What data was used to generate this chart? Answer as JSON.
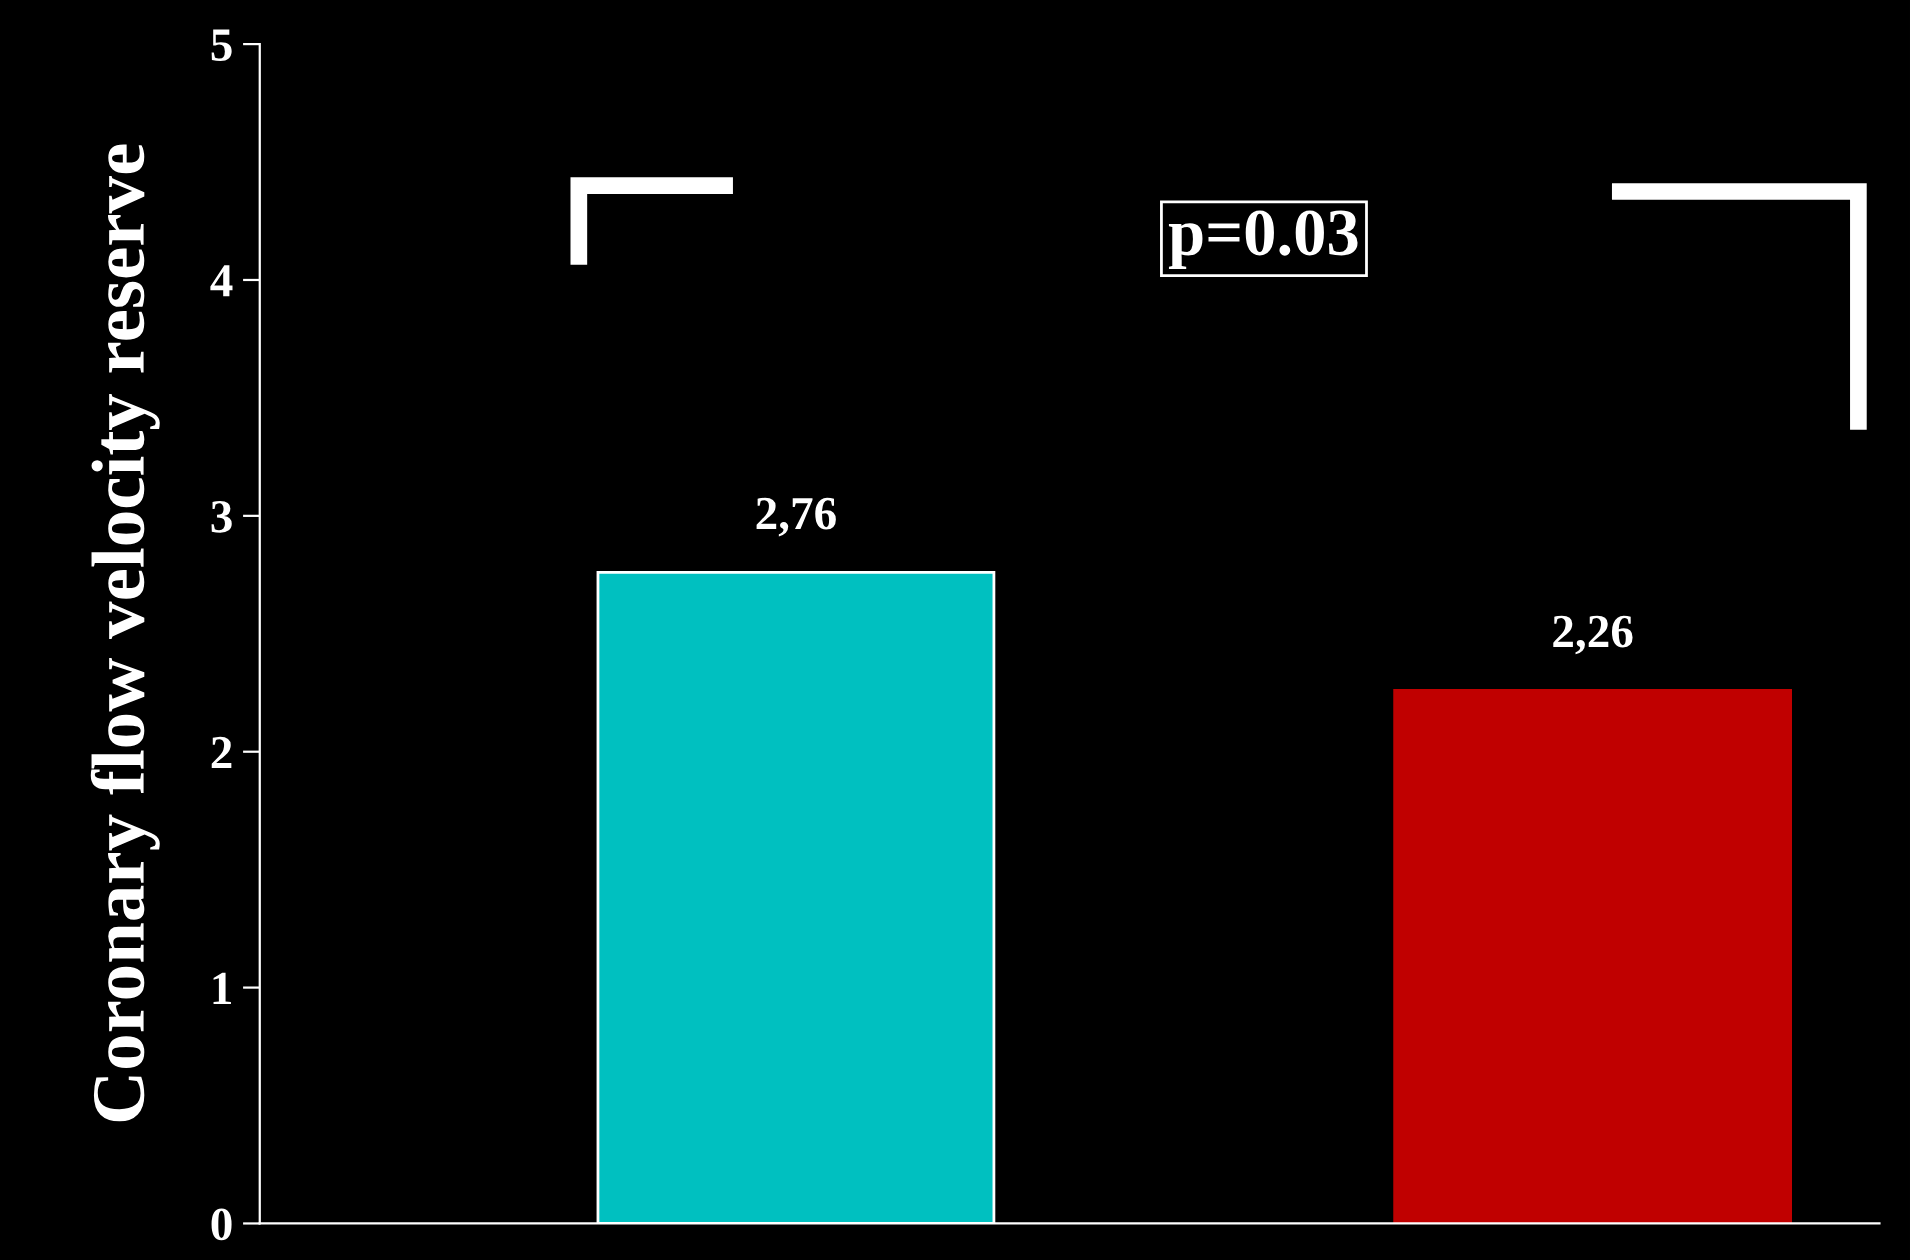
{
  "chart_data": {
    "type": "bar",
    "ylabel": "Coronary flow velocity reserve",
    "categories": [
      null,
      null
    ],
    "values": [
      2.76,
      2.26
    ],
    "colors": [
      "#00c0c0",
      "#c00000"
    ],
    "value_labels": [
      "2,76",
      "2,26"
    ],
    "ylim": [
      0,
      5
    ],
    "yticks": [
      0,
      1,
      2,
      3,
      4,
      5
    ],
    "grid": false,
    "annotations": [
      "p=0.03"
    ]
  }
}
